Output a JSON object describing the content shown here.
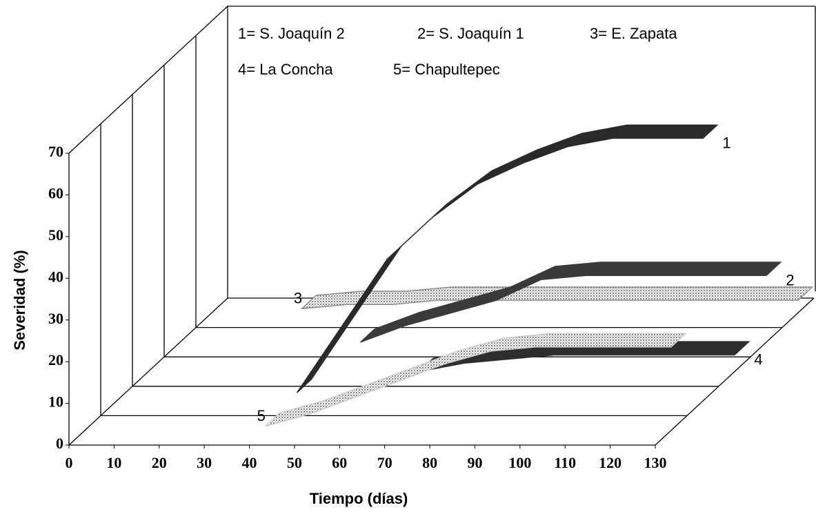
{
  "chart_data": {
    "type": "ribbon3d",
    "xlabel": "Tiempo (días)",
    "ylabel": "Severidad (%)",
    "x": [
      20,
      30,
      40,
      50,
      60,
      70,
      80,
      90,
      100,
      110,
      120,
      130
    ],
    "xlim": [
      0,
      130
    ],
    "xticks": [
      0,
      10,
      20,
      30,
      40,
      50,
      60,
      70,
      80,
      90,
      100,
      110,
      120,
      130
    ],
    "ylim": [
      0,
      70
    ],
    "yticks": [
      0,
      10,
      20,
      30,
      40,
      50,
      60,
      70
    ],
    "series": [
      {
        "name": "1= S. Joaquín 2",
        "tag": "1",
        "color": "#2a2a2a",
        "values": [
          null,
          null,
          2,
          18,
          34,
          44,
          52,
          57,
          61,
          63,
          63,
          63
        ]
      },
      {
        "name": "2= S. Joaquín 1",
        "tag": "2",
        "color": "#3a3a3a",
        "values": [
          null,
          null,
          0,
          4,
          7,
          10,
          15,
          16,
          16,
          16,
          16,
          16
        ]
      },
      {
        "name": "3= E. Zapata",
        "tag": "3",
        "color": "#8a8a8a",
        "values": [
          1,
          2,
          2,
          3,
          3,
          3,
          3,
          3,
          3,
          3,
          3,
          3
        ]
      },
      {
        "name": "4= La Concha",
        "tag": "4",
        "color": "#2e2e2e",
        "values": [
          null,
          null,
          null,
          null,
          0,
          2,
          3,
          4,
          4,
          4,
          4,
          4
        ]
      },
      {
        "name": "5= Chapultepec",
        "tag": "5",
        "color": "#c8c8c8",
        "values": [
          null,
          null,
          1,
          4,
          8,
          12,
          16,
          19,
          20,
          20,
          20,
          20
        ]
      }
    ]
  }
}
